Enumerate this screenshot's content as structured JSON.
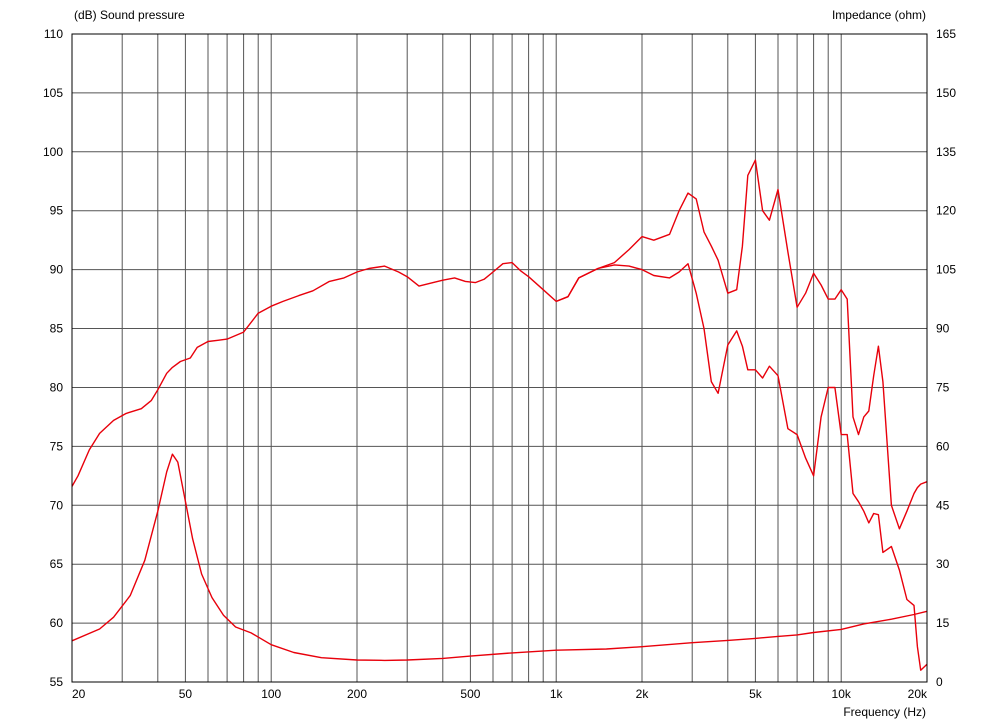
{
  "chart_data": {
    "type": "line",
    "title": "",
    "left_axis_title": "(dB)  Sound pressure",
    "right_axis_title": "Impedance  (ohm)",
    "x_axis_title": "Frequency  (Hz)",
    "x_scale": "log",
    "xlim": [
      20,
      20000
    ],
    "ylim": [
      55,
      110
    ],
    "y2lim": [
      0,
      165
    ],
    "grid": true,
    "line_color": "#e8000b",
    "grid_color": "#555555",
    "x_tick_labels": [
      {
        "value": 20,
        "label": "20"
      },
      {
        "value": 50,
        "label": "50"
      },
      {
        "value": 100,
        "label": "100"
      },
      {
        "value": 200,
        "label": "200"
      },
      {
        "value": 500,
        "label": "500"
      },
      {
        "value": 1000,
        "label": "1k"
      },
      {
        "value": 2000,
        "label": "2k"
      },
      {
        "value": 5000,
        "label": "5k"
      },
      {
        "value": 10000,
        "label": "10k"
      },
      {
        "value": 20000,
        "label": "20k"
      }
    ],
    "x_gridlines": [
      30,
      40,
      50,
      60,
      70,
      80,
      90,
      100,
      200,
      300,
      400,
      500,
      600,
      700,
      800,
      900,
      1000,
      2000,
      3000,
      4000,
      5000,
      6000,
      7000,
      8000,
      9000,
      10000
    ],
    "y_ticks": [
      55,
      60,
      65,
      70,
      75,
      80,
      85,
      90,
      95,
      100,
      105,
      110
    ],
    "y2_ticks": [
      0,
      15,
      30,
      45,
      60,
      75,
      90,
      105,
      120,
      135,
      150,
      165
    ],
    "series": [
      {
        "axis": "left",
        "x": [
          20,
          21,
          23,
          25,
          28,
          31,
          35,
          38,
          40,
          43,
          45,
          48,
          52,
          55,
          60,
          65,
          70,
          80,
          90,
          100,
          110,
          125,
          140,
          160,
          180,
          200,
          220,
          250,
          280,
          300,
          330,
          370,
          400,
          440,
          480,
          520,
          560,
          600,
          650,
          700,
          750,
          800,
          900,
          1000,
          1100,
          1200,
          1400,
          1600,
          1800,
          2000,
          2200,
          2500,
          2700,
          2900,
          3100,
          3300,
          3500,
          3700,
          4000,
          4300,
          4500,
          4700,
          5000,
          5300,
          5600,
          6000,
          6500,
          7000,
          7500,
          8000,
          8500,
          9000,
          9500,
          10000,
          10500,
          11000,
          11500,
          12000,
          12500,
          13000,
          13500,
          14000,
          15000,
          16000,
          17000,
          18000,
          18500,
          19000,
          20000
        ],
        "y": [
          71.6,
          72.5,
          74.7,
          76.1,
          77.2,
          77.8,
          78.2,
          78.9,
          79.8,
          81.2,
          81.7,
          82.2,
          82.5,
          83.4,
          83.9,
          84.0,
          84.1,
          84.7,
          86.3,
          86.9,
          87.3,
          87.8,
          88.2,
          89.0,
          89.3,
          89.8,
          90.1,
          90.3,
          89.8,
          89.4,
          88.6,
          88.9,
          89.1,
          89.3,
          89.0,
          88.9,
          89.2,
          89.8,
          90.5,
          90.6,
          89.9,
          89.4,
          88.3,
          87.3,
          87.7,
          89.3,
          90.1,
          90.6,
          91.7,
          92.8,
          92.5,
          93.0,
          95.0,
          96.5,
          96.0,
          93.2,
          92.0,
          90.8,
          88.0,
          88.3,
          92.0,
          98.0,
          99.3,
          95.0,
          94.2,
          96.8,
          91.5,
          86.8,
          88.0,
          89.7,
          88.7,
          87.5,
          87.5,
          88.3,
          87.5,
          77.5,
          76.0,
          77.5,
          78.0,
          81.0,
          83.5,
          80.5,
          70.0,
          68.0,
          69.5,
          71.0,
          71.5,
          71.8,
          72.0
        ]
      },
      {
        "axis": "left",
        "x": [
          1000,
          1100,
          1200,
          1400,
          1600,
          1800,
          2000,
          2200,
          2500,
          2700,
          2900,
          3100,
          3300,
          3500,
          3700,
          4000,
          4300,
          4500,
          4700,
          5000,
          5300,
          5600,
          6000,
          6500,
          7000,
          7500,
          8000,
          8500,
          9000,
          9500,
          10000,
          10500,
          11000,
          11500,
          12000,
          12500,
          13000,
          13500,
          14000,
          15000,
          16000,
          17000,
          18000,
          18500,
          19000,
          20000
        ],
        "y": [
          87.3,
          87.7,
          89.3,
          90.1,
          90.4,
          90.3,
          90.0,
          89.5,
          89.3,
          89.8,
          90.5,
          88.0,
          85.0,
          80.5,
          79.5,
          83.6,
          84.8,
          83.5,
          81.5,
          81.5,
          80.8,
          81.8,
          81.0,
          76.5,
          76.0,
          74.0,
          72.5,
          77.5,
          80.0,
          80.0,
          76.0,
          76.0,
          71.0,
          70.3,
          69.5,
          68.5,
          69.3,
          69.2,
          66.0,
          66.5,
          64.5,
          62.0,
          61.5,
          58.0,
          56.0,
          56.5
        ]
      },
      {
        "axis": "right",
        "x": [
          20,
          25,
          28,
          32,
          36,
          40,
          43,
          45,
          47,
          50,
          53,
          57,
          62,
          68,
          75,
          85,
          100,
          120,
          150,
          200,
          250,
          300,
          400,
          500,
          700,
          1000,
          1500,
          2000,
          3000,
          4000,
          5000,
          6000,
          7000,
          8000,
          10000,
          12000,
          15000,
          18000,
          20000
        ],
        "y": [
          10.5,
          13.5,
          16.5,
          22.0,
          31.0,
          43.5,
          53.5,
          58.0,
          56.0,
          46.0,
          36.5,
          27.5,
          21.5,
          17.0,
          14.0,
          12.5,
          9.5,
          7.5,
          6.2,
          5.6,
          5.5,
          5.6,
          6.0,
          6.6,
          7.4,
          8.1,
          8.4,
          9.0,
          10.0,
          10.6,
          11.1,
          11.6,
          12.0,
          12.6,
          13.4,
          14.8,
          16.0,
          17.2,
          18.0
        ]
      }
    ]
  }
}
